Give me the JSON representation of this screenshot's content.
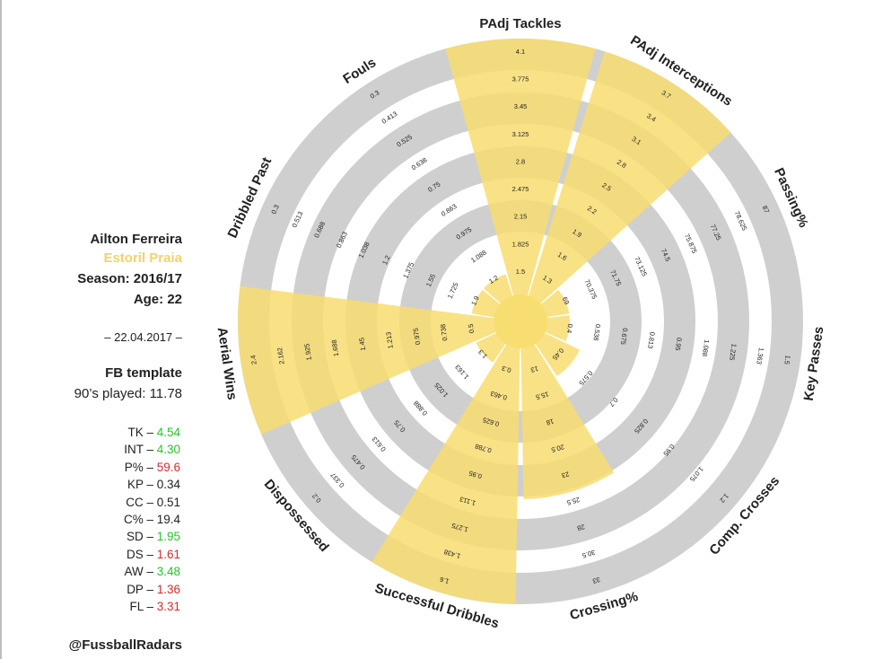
{
  "player": {
    "name": "Ailton Ferreira",
    "team": "Estoril Praia",
    "season": "Season: 2016/17",
    "age": "Age: 22",
    "date": "– 22.04.2017 –",
    "template": "FB template",
    "played": "90’s played: 11.78",
    "handle": "@FussballRadars"
  },
  "colors": {
    "ring": "#cfcfcf",
    "fill": "#f8dd70",
    "good": "#27c427",
    "bad": "#d62c2c",
    "team": "#f1d36a"
  },
  "stats": [
    {
      "label": "TK",
      "value": "4.54",
      "status": "good"
    },
    {
      "label": "INT",
      "value": "4.30",
      "status": "good"
    },
    {
      "label": "P%",
      "value": "59.6",
      "status": "bad"
    },
    {
      "label": "KP",
      "value": "0.34",
      "status": "neutral"
    },
    {
      "label": "CC",
      "value": "0.51",
      "status": "neutral"
    },
    {
      "label": "C%",
      "value": "19.4",
      "status": "neutral"
    },
    {
      "label": "SD",
      "value": "1.95",
      "status": "good"
    },
    {
      "label": "DS",
      "value": "1.61",
      "status": "bad"
    },
    {
      "label": "AW",
      "value": "3.48",
      "status": "good"
    },
    {
      "label": "DP",
      "value": "1.36",
      "status": "bad"
    },
    {
      "label": "FL",
      "value": "3.31",
      "status": "bad"
    }
  ],
  "chart_data": {
    "type": "radar",
    "title": "",
    "axes": [
      {
        "name": "PAdj Tackles",
        "ticks": [
          "1.5",
          "1.825",
          "2.15",
          "2.475",
          "2.8",
          "3.125",
          "3.45",
          "3.775",
          "4.1"
        ],
        "value": 4.54
      },
      {
        "name": "PAdj Interceptions",
        "ticks": [
          "1.3",
          "1.6",
          "1.9",
          "2.2",
          "2.5",
          "2.8",
          "3.1",
          "3.4",
          "3.7"
        ],
        "value": 4.3
      },
      {
        "name": "Passing%",
        "ticks": [
          "69",
          "70.375",
          "71.75",
          "73.125",
          "74.5",
          "75.875",
          "77.25",
          "78.625",
          "87"
        ],
        "value": 59.6
      },
      {
        "name": "Key Passes",
        "ticks": [
          "0.4",
          "0.538",
          "0.675",
          "0.813",
          "0.95",
          "1.088",
          "1.225",
          "1.363",
          "1.5"
        ],
        "value": 0.34
      },
      {
        "name": "Comp. Crosses",
        "ticks": [
          "0.45",
          "0.575",
          "0.7",
          "0.825",
          "0.95",
          "1.075",
          "1.2"
        ],
        "value": 0.51
      },
      {
        "name": "Crossing%",
        "ticks": [
          "13",
          "15.5",
          "18",
          "20.5",
          "23",
          "25.5",
          "28",
          "30.5",
          "33"
        ],
        "value": 19.4
      },
      {
        "name": "Successful Dribbles",
        "ticks": [
          "0.3",
          "0.463",
          "0.625",
          "0.788",
          "0.95",
          "1.113",
          "1.275",
          "1.438",
          "1.6"
        ],
        "value": 1.95
      },
      {
        "name": "Dispossessed",
        "ticks": [
          "1.3",
          "1.163",
          "1.025",
          "0.888",
          "0.75",
          "0.613",
          "0.475",
          "0.337",
          "0.2"
        ],
        "value": 1.61
      },
      {
        "name": "Aerial Wins",
        "ticks": [
          "0.5",
          "0.738",
          "0.975",
          "1.213",
          "1.45",
          "1.688",
          "1.925",
          "2.162",
          "2.4"
        ],
        "value": 3.48
      },
      {
        "name": "Dribbled Past",
        "ticks": [
          "1.9",
          "1.725",
          "1.55",
          "1.375",
          "1.2",
          "1.038",
          "0.863",
          "0.688",
          "0.513",
          "0.3"
        ],
        "value": 1.36
      },
      {
        "name": "Fouls",
        "ticks": [
          "1.2",
          "1.088",
          "0.975",
          "0.863",
          "0.75",
          "0.638",
          "0.525",
          "0.413",
          "0.3"
        ],
        "value": 3.31
      }
    ],
    "fill_fraction": [
      1.0,
      1.0,
      0.0,
      0.0,
      0.07,
      0.55,
      1.0,
      0.0,
      1.0,
      0.0,
      0.0
    ],
    "grid": true,
    "legend": "none"
  }
}
